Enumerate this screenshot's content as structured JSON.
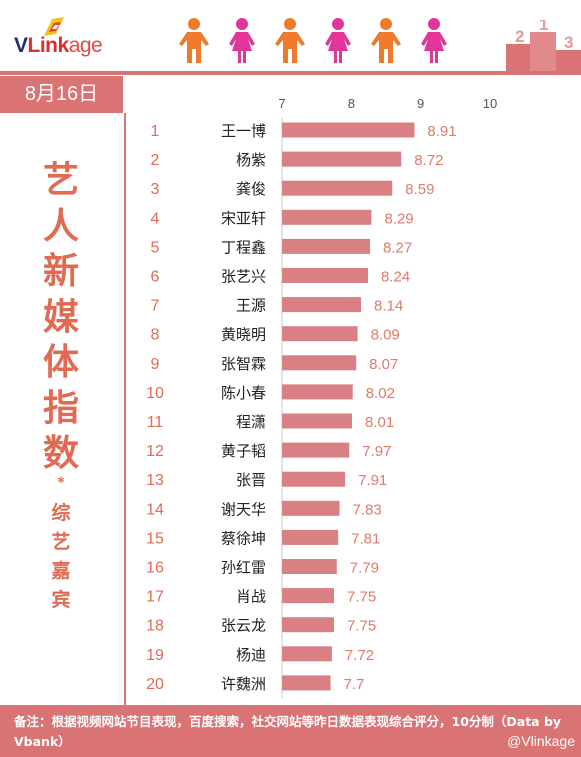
{
  "brand": {
    "logo_prefix": "V",
    "logo_mid": "Link",
    "logo_suffix": "age"
  },
  "date_label": "8月16日",
  "side_title": {
    "main": [
      "艺",
      "人",
      "新",
      "媒",
      "体",
      "指",
      "数"
    ],
    "star": "*",
    "sub": [
      "综",
      "艺",
      "嘉",
      "宾"
    ]
  },
  "footer": {
    "note": "备注：根据视频网站节目表现，百度搜索，社交网站等昨日数据表现综合评分，10分制（Data by Vbank）",
    "watermark": "@Vlinkage"
  },
  "colors": {
    "bar": "#d98084",
    "accent": "#d97374",
    "title": "#e06a52",
    "rank": "#e06a52",
    "value": "#e07a6a",
    "figure_orange": "#f07a2b",
    "figure_pink": "#e0369a"
  },
  "header_icons": [
    "person-orange-icon",
    "person-pink-icon",
    "person-orange-icon",
    "person-pink-icon",
    "person-orange-icon",
    "person-pink-icon",
    "podium-icon"
  ],
  "podium_labels": [
    "2",
    "1",
    "3"
  ],
  "chart_data": {
    "type": "bar",
    "orientation": "horizontal",
    "xlim": [
      7,
      10
    ],
    "xticks": [
      7,
      8,
      9,
      10
    ],
    "ranks": [
      "1",
      "2",
      "3",
      "4",
      "5",
      "6",
      "7",
      "8",
      "9",
      "10",
      "11",
      "12",
      "13",
      "14",
      "15",
      "16",
      "17",
      "18",
      "19",
      "20"
    ],
    "categories": [
      "王一博",
      "杨紫",
      "龚俊",
      "宋亚轩",
      "丁程鑫",
      "张艺兴",
      "王源",
      "黄晓明",
      "张智霖",
      "陈小春",
      "程潇",
      "黄子韬",
      "张晋",
      "谢天华",
      "蔡徐坤",
      "孙红雷",
      "肖战",
      "张云龙",
      "杨迪",
      "许魏洲"
    ],
    "values": [
      8.91,
      8.72,
      8.59,
      8.29,
      8.27,
      8.24,
      8.14,
      8.09,
      8.07,
      8.02,
      8.01,
      7.97,
      7.91,
      7.83,
      7.81,
      7.79,
      7.75,
      7.75,
      7.72,
      7.7
    ],
    "value_labels": [
      "8.91",
      "8.72",
      "8.59",
      "8.29",
      "8.27",
      "8.24",
      "8.14",
      "8.09",
      "8.07",
      "8.02",
      "8.01",
      "7.97",
      "7.91",
      "7.83",
      "7.81",
      "7.79",
      "7.75",
      "7.75",
      "7.72",
      "7.7"
    ],
    "grid": false,
    "legend": "none"
  }
}
